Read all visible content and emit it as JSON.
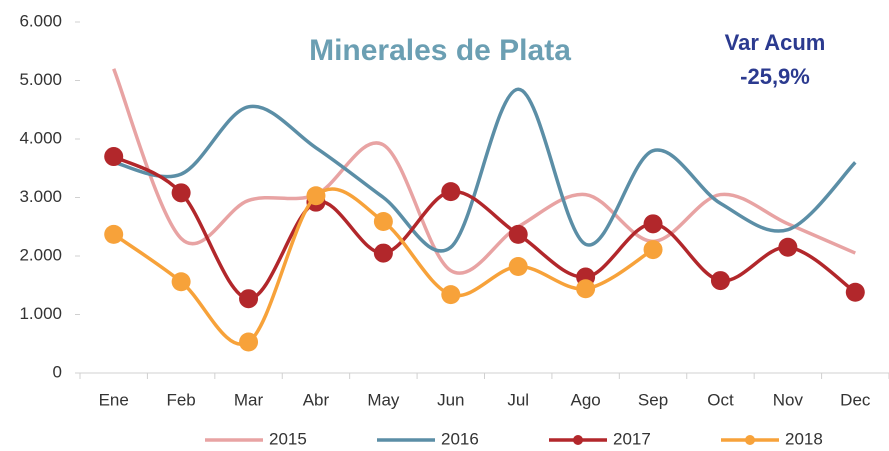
{
  "chart_data": {
    "type": "line",
    "title": "Minerales de Plata",
    "annotations": [
      "Var Acum",
      "-25,9%"
    ],
    "categories": [
      "Ene",
      "Feb",
      "Mar",
      "Abr",
      "May",
      "Jun",
      "Jul",
      "Ago",
      "Sep",
      "Oct",
      "Nov",
      "Dec"
    ],
    "series": [
      {
        "name": "2015",
        "color": "#e8a3a3",
        "marker": false,
        "values": [
          5200,
          2300,
          2950,
          3050,
          3900,
          1750,
          2500,
          3050,
          2250,
          3050,
          2550,
          2050
        ]
      },
      {
        "name": "2016",
        "color": "#5b8ea6",
        "marker": false,
        "values": [
          3600,
          3400,
          4550,
          3850,
          3000,
          2150,
          4850,
          2200,
          3800,
          2900,
          2450,
          3600
        ]
      },
      {
        "name": "2017",
        "color": "#b2272b",
        "marker": true,
        "values": [
          3700,
          3080,
          1270,
          2920,
          2050,
          3100,
          2370,
          1640,
          2550,
          1580,
          2150,
          1380
        ]
      },
      {
        "name": "2018",
        "color": "#f7a23a",
        "marker": true,
        "values": [
          2370,
          1560,
          530,
          3030,
          2590,
          1340,
          1820,
          1440,
          2110,
          null,
          null,
          null
        ]
      }
    ],
    "ylim": [
      0,
      6000
    ],
    "yticks": [
      0,
      {
        "value": 1000,
        "label": "1.000"
      },
      {
        "value": 2000,
        "label": "2.000"
      },
      {
        "value": 3000,
        "label": "3.000"
      },
      {
        "value": 4000,
        "label": "4.000"
      },
      {
        "value": 5000,
        "label": "5.000"
      },
      {
        "value": 6000,
        "label": "6.000"
      }
    ],
    "grid": false
  }
}
